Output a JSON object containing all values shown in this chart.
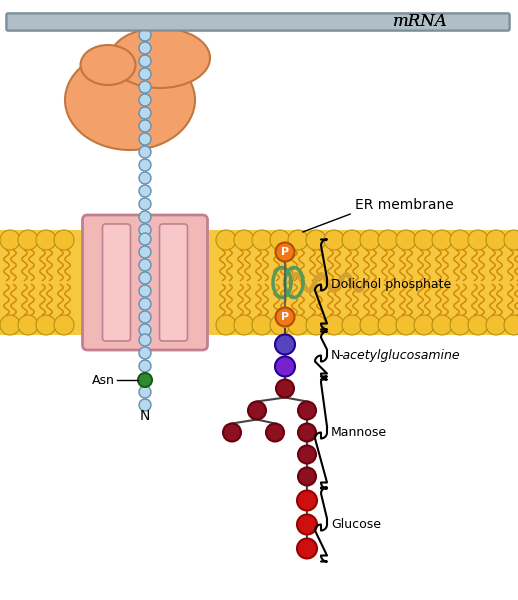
{
  "bg_color": "#ffffff",
  "mrna_label": "mRNA",
  "er_membrane_label": "ER membrane",
  "dolichol_label": "Dolichol phosphate",
  "nacetyl_label": "N-acetylglucosamine",
  "mannose_label": "Mannose",
  "glucose_label": "Glucose",
  "asn_label": "Asn",
  "n_label": "N",
  "mrna_color": "#b0bec5",
  "mrna_edge": "#7a8f9a",
  "ribosome_color": "#f4a06a",
  "ribosome_edge": "#c07840",
  "channel_color": "#f2b8b8",
  "channel_edge": "#c08090",
  "mem_head_color": "#f5c030",
  "mem_tail_color": "#d4880a",
  "mem_bg_color": "#f5c840",
  "peptide_color": "#b8d8ee",
  "peptide_edge": "#6090b0",
  "asn_color": "#2e8b2e",
  "asn_edge": "#1a5c1a",
  "dol_p_color": "#f07818",
  "dol_p_edge": "#b05000",
  "dol_loop_color": "#589858",
  "nag1_color": "#5544bb",
  "nag2_color": "#7722cc",
  "mannose_color": "#8b1020",
  "mannose_dark": "#6b0010",
  "glucose_color": "#cc1010",
  "glucose_dark": "#990000"
}
